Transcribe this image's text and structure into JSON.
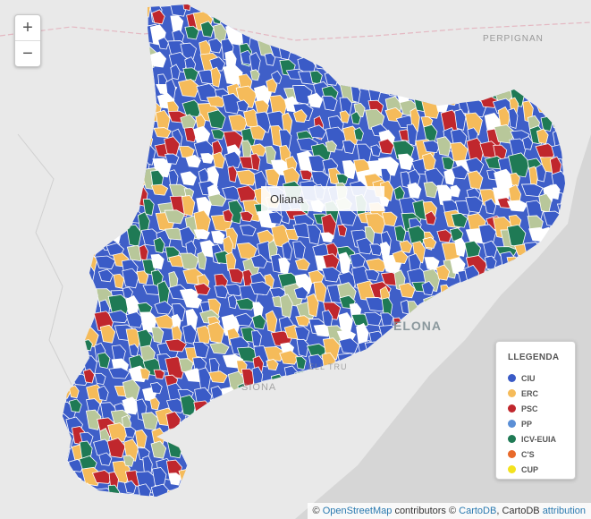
{
  "tooltip": {
    "label": "Oliana"
  },
  "zoom": {
    "in_label": "+",
    "out_label": "−"
  },
  "place_labels": {
    "perpignan": "PERPIGNAN",
    "barcelona": "ELONA",
    "coast1": "SIONA",
    "coast2": "ELL TRU"
  },
  "legend": {
    "title": "LLEGENDA",
    "items": [
      {
        "label": "CIU",
        "color": "#3a5bc7"
      },
      {
        "label": "ERC",
        "color": "#f5bb5a"
      },
      {
        "label": "PSC",
        "color": "#c0272d"
      },
      {
        "label": "PP",
        "color": "#5b8fd6"
      },
      {
        "label": "ICV-EUIA",
        "color": "#1f7a55"
      },
      {
        "label": "C'S",
        "color": "#e86a2b"
      },
      {
        "label": "CUP",
        "color": "#f3e21e"
      }
    ]
  },
  "attribution": {
    "copyright1": "©",
    "osm": "OpenStreetMap",
    "contributors": "contributors ©",
    "cartodb": "CartoDB",
    "sep": ", CartoDB",
    "attribution_link": "attribution"
  }
}
